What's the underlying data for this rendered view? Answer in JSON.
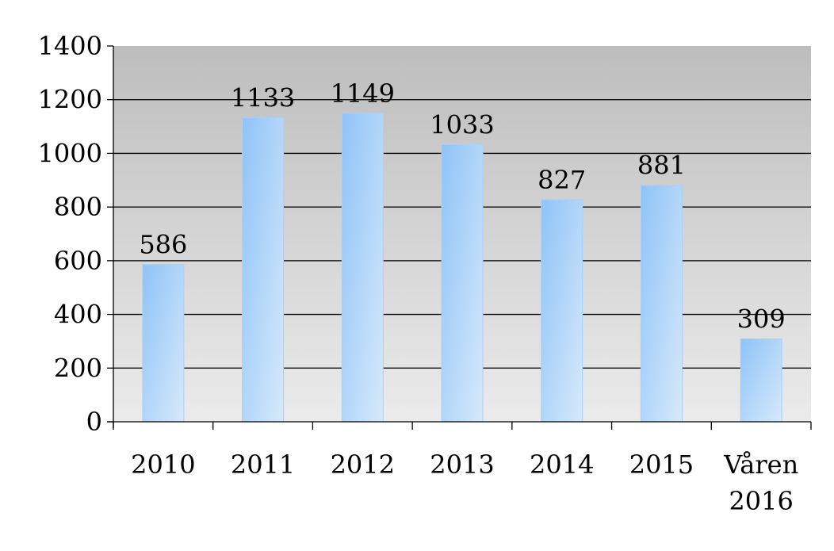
{
  "chart_data": {
    "type": "bar",
    "title": "",
    "xlabel": "",
    "ylabel": "",
    "categories": [
      [
        "2010"
      ],
      [
        "2011"
      ],
      [
        "2012"
      ],
      [
        "2013"
      ],
      [
        "2014"
      ],
      [
        "2015"
      ],
      [
        "Våren",
        "2016"
      ]
    ],
    "values": [
      586,
      1133,
      1149,
      1033,
      827,
      881,
      309
    ],
    "ylim": [
      0,
      1400
    ],
    "yticks": [
      "0",
      "200",
      "400",
      "600",
      "800",
      "1000",
      "1200",
      "1400"
    ],
    "grid": true,
    "legend": "none",
    "colors": {
      "bar_light": "#d6e9fb",
      "bar_dark": "#8fc3f7",
      "plot_bg_top": "#bdbdbd",
      "plot_bg_bottom": "#ebebeb",
      "grid": "#000000"
    }
  }
}
